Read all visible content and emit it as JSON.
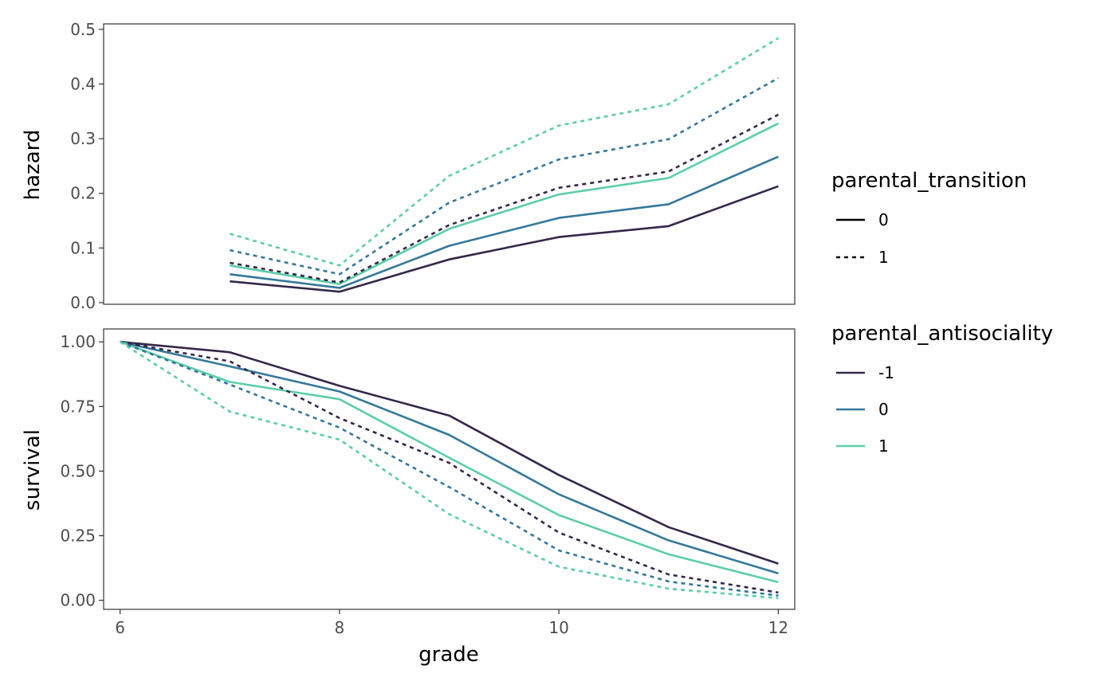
{
  "chart_data": {
    "type": "line",
    "x_label": "grade",
    "x": [
      6,
      7,
      8,
      9,
      10,
      11,
      12
    ],
    "x_ticks": [
      "6",
      "8",
      "10",
      "12"
    ],
    "x_tick_values": [
      6,
      8,
      10,
      12
    ],
    "xlim": [
      5.85,
      12.15
    ],
    "panels": [
      {
        "y_label": "hazard",
        "ylim": [
          -0.003,
          0.51
        ],
        "y_ticks": [
          "0.0",
          "0.1",
          "0.2",
          "0.3",
          "0.4",
          "0.5"
        ],
        "y_tick_values": [
          0,
          0.1,
          0.2,
          0.3,
          0.4,
          0.5
        ],
        "x_start": 7,
        "series": [
          {
            "antisociality": "-1",
            "transition": "0",
            "values": [
              0.039,
              0.02,
              0.079,
              0.12,
              0.14,
              0.213
            ]
          },
          {
            "antisociality": "0",
            "transition": "0",
            "values": [
              0.052,
              0.027,
              0.104,
              0.155,
              0.18,
              0.267
            ]
          },
          {
            "antisociality": "1",
            "transition": "0",
            "values": [
              0.068,
              0.034,
              0.135,
              0.198,
              0.228,
              0.328
            ]
          },
          {
            "antisociality": "-1",
            "transition": "1",
            "values": [
              0.073,
              0.037,
              0.142,
              0.21,
              0.24,
              0.344
            ]
          },
          {
            "antisociality": "0",
            "transition": "1",
            "values": [
              0.096,
              0.052,
              0.183,
              0.262,
              0.299,
              0.411
            ]
          },
          {
            "antisociality": "1",
            "transition": "1",
            "values": [
              0.126,
              0.068,
              0.232,
              0.324,
              0.363,
              0.484
            ]
          }
        ]
      },
      {
        "y_label": "survival",
        "ylim": [
          -0.035,
          1.05
        ],
        "y_ticks": [
          "0.00",
          "0.25",
          "0.50",
          "0.75",
          "1.00"
        ],
        "y_tick_values": [
          0,
          0.25,
          0.5,
          0.75,
          1.0
        ],
        "x_start": 6,
        "series": [
          {
            "antisociality": "-1",
            "transition": "0",
            "values": [
              1.0,
              0.96,
              0.83,
              0.715,
              0.485,
              0.283,
              0.142
            ]
          },
          {
            "antisociality": "0",
            "transition": "0",
            "values": [
              1.0,
              0.905,
              0.808,
              0.64,
              0.41,
              0.232,
              0.104
            ]
          },
          {
            "antisociality": "1",
            "transition": "0",
            "values": [
              1.0,
              0.845,
              0.778,
              0.552,
              0.33,
              0.178,
              0.07
            ]
          },
          {
            "antisociality": "-1",
            "transition": "1",
            "values": [
              1.0,
              0.925,
              0.705,
              0.532,
              0.262,
              0.1,
              0.03
            ]
          },
          {
            "antisociality": "0",
            "transition": "1",
            "values": [
              1.0,
              0.835,
              0.668,
              0.438,
              0.193,
              0.073,
              0.018
            ]
          },
          {
            "antisociality": "1",
            "transition": "1",
            "values": [
              1.0,
              0.73,
              0.622,
              0.333,
              0.13,
              0.045,
              0.008
            ]
          }
        ]
      }
    ],
    "legends": [
      {
        "title": "parental_transition",
        "entries": [
          {
            "label": "0",
            "linetype": "solid"
          },
          {
            "label": "1",
            "linetype": "dashed"
          }
        ]
      },
      {
        "title": "parental_antisociality",
        "entries": [
          {
            "label": "-1",
            "color": "#35274a"
          },
          {
            "label": "0",
            "color": "#35789a"
          },
          {
            "label": "1",
            "color": "#5ccda9"
          }
        ]
      }
    ],
    "colors": {
      "-1": "#35274a",
      "0": "#35789a",
      "1": "#5ccda9"
    },
    "grid": false,
    "legend_position": "right"
  }
}
